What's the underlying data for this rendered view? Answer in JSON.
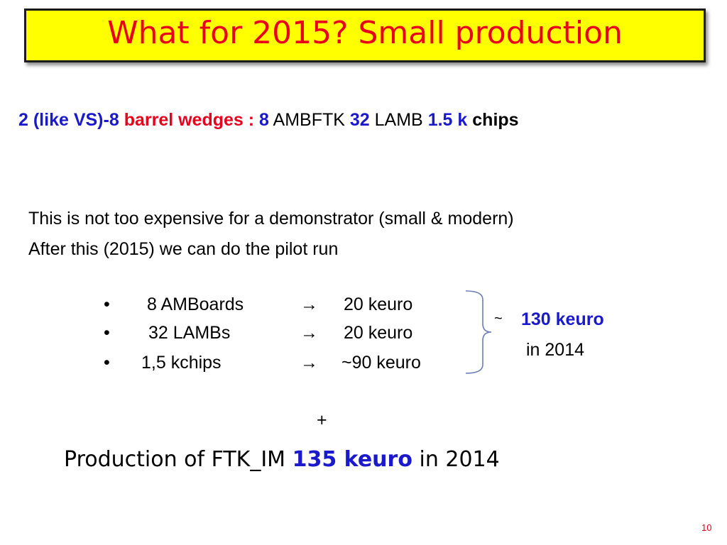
{
  "title": "What for 2015? Small production",
  "subline": {
    "part1": "2 (like VS)-8",
    "part2": "barrel wedges :",
    "part3": "8",
    "part4": "AMBFTK",
    "part5": "32",
    "part6": "LAMB",
    "part7": "1.5 k",
    "part8": "chips"
  },
  "paragraph": [
    "This is not too expensive for a demonstrator (small & modern)",
    "After this (2015) we can do the pilot run"
  ],
  "bullets": [
    {
      "marker": "•",
      "item": "8 AMBoards",
      "arrow": "→",
      "cost": "20 keuro"
    },
    {
      "marker": "•",
      "item": "32 LAMBs",
      "arrow": "→",
      "cost": "20 keuro"
    },
    {
      "marker": "•",
      "item": "1,5 kchips",
      "arrow": "→",
      "cost": "~90 keuro"
    }
  ],
  "summary": {
    "tilde": "~",
    "amount": "130 keuro",
    "year": "in 2014"
  },
  "plus": "+",
  "production": {
    "prefix": "Production of FTK_IM",
    "amount": "135 keuro",
    "suffix": "in 2014"
  },
  "page_number": "10",
  "colors": {
    "title_bg": "#ffff00",
    "title_text": "#e8001c",
    "accent_blue": "#1a1acc",
    "accent_red": "#e8001c",
    "brace": "#6b7fb8"
  }
}
